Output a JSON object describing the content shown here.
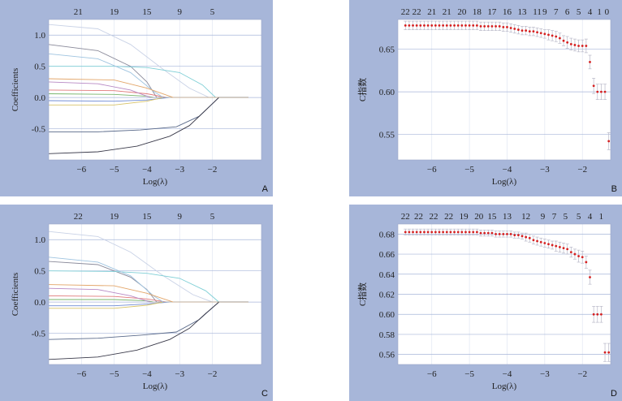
{
  "chart_data": [
    {
      "panel": "A",
      "type": "line",
      "xlabel": "Log(λ)",
      "ylabel": "Coefficients",
      "xlim": [
        -7,
        -0.5
      ],
      "ylim": [
        -1.0,
        1.25
      ],
      "x_ticks": [
        -6,
        -5,
        -4,
        -3,
        -2
      ],
      "y_ticks": [
        -0.5,
        0.0,
        0.5,
        1.0
      ],
      "y_tick_labels": [
        "-0.5",
        "0.0",
        "0.5",
        "1.0"
      ],
      "top_labels": [
        {
          "x": -6.1,
          "label": "21"
        },
        {
          "x": -5.0,
          "label": "19"
        },
        {
          "x": -4.0,
          "label": "15"
        },
        {
          "x": -3.0,
          "label": "9"
        },
        {
          "x": -2.0,
          "label": "5"
        }
      ],
      "series": [
        {
          "color": "#c9d2e6",
          "values": [
            [
              -7,
              1.17
            ],
            [
              -5.5,
              1.1
            ],
            [
              -4.5,
              0.85
            ],
            [
              -3.5,
              0.45
            ],
            [
              -2.7,
              0.15
            ],
            [
              -2.1,
              0.0
            ]
          ]
        },
        {
          "color": "#8a8a9a",
          "values": [
            [
              -7,
              0.85
            ],
            [
              -5.5,
              0.75
            ],
            [
              -4.5,
              0.5
            ],
            [
              -4.0,
              0.25
            ],
            [
              -3.7,
              0.0
            ]
          ]
        },
        {
          "color": "#7fcfd6",
          "values": [
            [
              -7,
              0.5
            ],
            [
              -5,
              0.5
            ],
            [
              -4,
              0.48
            ],
            [
              -3,
              0.4
            ],
            [
              -2.3,
              0.2
            ],
            [
              -1.9,
              0.0
            ]
          ]
        },
        {
          "color": "#e07a7a",
          "values": [
            [
              -7,
              0.12
            ],
            [
              -5,
              0.11
            ],
            [
              -4,
              0.06
            ],
            [
              -3.4,
              0.0
            ]
          ]
        },
        {
          "color": "#78b56b",
          "values": [
            [
              -7,
              0.06
            ],
            [
              -5,
              0.05
            ],
            [
              -4,
              0.02
            ],
            [
              -3.8,
              0.0
            ]
          ]
        },
        {
          "color": "#6f8bd4",
          "values": [
            [
              -7,
              -0.05
            ],
            [
              -5,
              -0.06
            ],
            [
              -4,
              -0.04
            ],
            [
              -3.3,
              0.0
            ]
          ]
        },
        {
          "color": "#b889c4",
          "values": [
            [
              -7,
              0.25
            ],
            [
              -5.5,
              0.22
            ],
            [
              -4.5,
              0.12
            ],
            [
              -3.9,
              0.0
            ]
          ]
        },
        {
          "color": "#d8c46a",
          "values": [
            [
              -7,
              -0.12
            ],
            [
              -5,
              -0.12
            ],
            [
              -4,
              -0.06
            ],
            [
              -3.5,
              0.0
            ]
          ]
        },
        {
          "color": "#5a6a8a",
          "values": [
            [
              -7,
              -0.55
            ],
            [
              -5.5,
              -0.55
            ],
            [
              -4.2,
              -0.52
            ],
            [
              -3.1,
              -0.47
            ],
            [
              -2.4,
              -0.3
            ],
            [
              -1.8,
              0.0
            ]
          ]
        },
        {
          "color": "#3a3a4a",
          "values": [
            [
              -7,
              -0.9
            ],
            [
              -5.5,
              -0.87
            ],
            [
              -4.3,
              -0.78
            ],
            [
              -3.3,
              -0.62
            ],
            [
              -2.7,
              -0.45
            ],
            [
              -2.2,
              -0.2
            ],
            [
              -1.8,
              0.0
            ]
          ]
        },
        {
          "color": "#9fc4e0",
          "values": [
            [
              -7,
              0.7
            ],
            [
              -5.5,
              0.62
            ],
            [
              -4.5,
              0.4
            ],
            [
              -3.8,
              0.1
            ],
            [
              -3.5,
              0.0
            ]
          ]
        },
        {
          "color": "#e3a66a",
          "values": [
            [
              -7,
              0.3
            ],
            [
              -5,
              0.28
            ],
            [
              -4,
              0.15
            ],
            [
              -3.2,
              0.0
            ]
          ]
        }
      ]
    },
    {
      "panel": "B",
      "type": "scatter",
      "xlabel": "Log(λ)",
      "ylabel": "C指数",
      "xlim": [
        -6.9,
        -1.25
      ],
      "ylim": [
        0.52,
        0.685
      ],
      "x_ticks": [
        -6,
        -5,
        -4,
        -3,
        -2
      ],
      "y_ticks": [
        0.55,
        0.6,
        0.65
      ],
      "y_tick_labels": [
        "0.55",
        "0.60",
        "0.65"
      ],
      "top_labels": [
        {
          "x": -6.7,
          "label": "22"
        },
        {
          "x": -6.4,
          "label": "22"
        },
        {
          "x": -6.0,
          "label": "21"
        },
        {
          "x": -5.6,
          "label": "21"
        },
        {
          "x": -5.2,
          "label": "20"
        },
        {
          "x": -4.8,
          "label": "18"
        },
        {
          "x": -4.4,
          "label": "17"
        },
        {
          "x": -4.0,
          "label": "16"
        },
        {
          "x": -3.6,
          "label": "13"
        },
        {
          "x": -3.2,
          "label": "11"
        },
        {
          "x": -3.0,
          "label": "9"
        },
        {
          "x": -2.7,
          "label": "7"
        },
        {
          "x": -2.4,
          "label": "6"
        },
        {
          "x": -2.1,
          "label": "5"
        },
        {
          "x": -1.8,
          "label": "4"
        },
        {
          "x": -1.55,
          "label": "1"
        },
        {
          "x": -1.35,
          "label": "0"
        }
      ],
      "x": [
        -6.7,
        -6.6,
        -6.5,
        -6.4,
        -6.3,
        -6.2,
        -6.1,
        -6.0,
        -5.9,
        -5.8,
        -5.7,
        -5.6,
        -5.5,
        -5.4,
        -5.3,
        -5.2,
        -5.1,
        -5.0,
        -4.9,
        -4.8,
        -4.7,
        -4.6,
        -4.5,
        -4.4,
        -4.3,
        -4.2,
        -4.1,
        -4.0,
        -3.9,
        -3.8,
        -3.7,
        -3.6,
        -3.5,
        -3.4,
        -3.3,
        -3.2,
        -3.1,
        -3.0,
        -2.9,
        -2.8,
        -2.7,
        -2.6,
        -2.5,
        -2.4,
        -2.3,
        -2.2,
        -2.1,
        -2.0,
        -1.9,
        -1.8,
        -1.7,
        -1.6,
        -1.5,
        -1.4,
        -1.3
      ],
      "y": [
        0.678,
        0.678,
        0.678,
        0.678,
        0.678,
        0.678,
        0.678,
        0.678,
        0.678,
        0.678,
        0.678,
        0.678,
        0.678,
        0.678,
        0.678,
        0.678,
        0.678,
        0.678,
        0.678,
        0.678,
        0.677,
        0.677,
        0.677,
        0.677,
        0.677,
        0.677,
        0.676,
        0.676,
        0.675,
        0.674,
        0.673,
        0.672,
        0.672,
        0.671,
        0.671,
        0.67,
        0.669,
        0.668,
        0.667,
        0.666,
        0.665,
        0.663,
        0.66,
        0.658,
        0.656,
        0.655,
        0.654,
        0.654,
        0.654,
        0.635,
        0.607,
        0.6,
        0.6,
        0.6,
        0.542
      ],
      "err": [
        0.005,
        0.005,
        0.005,
        0.005,
        0.005,
        0.005,
        0.005,
        0.005,
        0.005,
        0.005,
        0.005,
        0.005,
        0.005,
        0.005,
        0.005,
        0.005,
        0.005,
        0.005,
        0.005,
        0.005,
        0.005,
        0.005,
        0.005,
        0.005,
        0.005,
        0.005,
        0.005,
        0.005,
        0.005,
        0.005,
        0.005,
        0.005,
        0.005,
        0.005,
        0.005,
        0.005,
        0.005,
        0.005,
        0.006,
        0.006,
        0.006,
        0.006,
        0.006,
        0.007,
        0.007,
        0.007,
        0.007,
        0.007,
        0.008,
        0.008,
        0.009,
        0.009,
        0.009,
        0.009,
        0.01
      ],
      "marker_color": "#d62020"
    },
    {
      "panel": "C",
      "type": "line",
      "xlabel": "Log(λ)",
      "ylabel": "Coefficients",
      "xlim": [
        -7,
        -0.5
      ],
      "ylim": [
        -1.0,
        1.25
      ],
      "x_ticks": [
        -6,
        -5,
        -4,
        -3,
        -2
      ],
      "y_ticks": [
        -0.5,
        0.0,
        0.5,
        1.0
      ],
      "y_tick_labels": [
        "-0.5",
        "0.0",
        "0.5",
        "1.0"
      ],
      "top_labels": [
        {
          "x": -6.1,
          "label": "22"
        },
        {
          "x": -5.0,
          "label": "19"
        },
        {
          "x": -4.0,
          "label": "15"
        },
        {
          "x": -3.0,
          "label": "9"
        },
        {
          "x": -2.0,
          "label": "5"
        }
      ],
      "series": [
        {
          "color": "#c9d2e6",
          "values": [
            [
              -7,
              1.13
            ],
            [
              -5.5,
              1.05
            ],
            [
              -4.5,
              0.8
            ],
            [
              -3.5,
              0.42
            ],
            [
              -2.6,
              0.12
            ],
            [
              -2.0,
              0.0
            ]
          ]
        },
        {
          "color": "#8a8a9a",
          "values": [
            [
              -7,
              0.65
            ],
            [
              -5.5,
              0.6
            ],
            [
              -4.5,
              0.4
            ],
            [
              -4.0,
              0.2
            ],
            [
              -3.7,
              0.0
            ]
          ]
        },
        {
          "color": "#7fcfd6",
          "values": [
            [
              -7,
              0.5
            ],
            [
              -5,
              0.49
            ],
            [
              -4,
              0.46
            ],
            [
              -3,
              0.38
            ],
            [
              -2.2,
              0.18
            ],
            [
              -1.8,
              0.0
            ]
          ]
        },
        {
          "color": "#e07a7a",
          "values": [
            [
              -7,
              0.1
            ],
            [
              -5,
              0.09
            ],
            [
              -4,
              0.05
            ],
            [
              -3.4,
              0.0
            ]
          ]
        },
        {
          "color": "#78b56b",
          "values": [
            [
              -7,
              0.04
            ],
            [
              -5,
              0.04
            ],
            [
              -4,
              0.02
            ],
            [
              -3.8,
              0.0
            ]
          ]
        },
        {
          "color": "#6f8bd4",
          "values": [
            [
              -7,
              -0.06
            ],
            [
              -5,
              -0.06
            ],
            [
              -4,
              -0.03
            ],
            [
              -3.3,
              0.0
            ]
          ]
        },
        {
          "color": "#b889c4",
          "values": [
            [
              -7,
              0.22
            ],
            [
              -5.5,
              0.2
            ],
            [
              -4.5,
              0.1
            ],
            [
              -3.9,
              0.0
            ]
          ]
        },
        {
          "color": "#d8c46a",
          "values": [
            [
              -7,
              -0.1
            ],
            [
              -5,
              -0.1
            ],
            [
              -4,
              -0.05
            ],
            [
              -3.5,
              0.0
            ]
          ]
        },
        {
          "color": "#5a6a8a",
          "values": [
            [
              -7,
              -0.6
            ],
            [
              -5.5,
              -0.58
            ],
            [
              -4.2,
              -0.53
            ],
            [
              -3.1,
              -0.48
            ],
            [
              -2.4,
              -0.28
            ],
            [
              -1.8,
              0.0
            ]
          ]
        },
        {
          "color": "#3a3a4a",
          "values": [
            [
              -7,
              -0.92
            ],
            [
              -5.5,
              -0.88
            ],
            [
              -4.3,
              -0.77
            ],
            [
              -3.3,
              -0.6
            ],
            [
              -2.7,
              -0.42
            ],
            [
              -2.2,
              -0.18
            ],
            [
              -1.8,
              0.0
            ]
          ]
        },
        {
          "color": "#9fc4e0",
          "values": [
            [
              -7,
              0.72
            ],
            [
              -5.5,
              0.64
            ],
            [
              -4.5,
              0.42
            ],
            [
              -3.8,
              0.1
            ],
            [
              -3.5,
              0.0
            ]
          ]
        },
        {
          "color": "#e3a66a",
          "values": [
            [
              -7,
              0.28
            ],
            [
              -5,
              0.26
            ],
            [
              -4,
              0.14
            ],
            [
              -3.2,
              0.0
            ]
          ]
        }
      ]
    },
    {
      "panel": "D",
      "type": "scatter",
      "xlabel": "Log(λ)",
      "ylabel": "C指数",
      "xlim": [
        -6.9,
        -1.25
      ],
      "ylim": [
        0.55,
        0.69
      ],
      "x_ticks": [
        -6,
        -5,
        -4,
        -3,
        -2
      ],
      "y_ticks": [
        0.56,
        0.58,
        0.6,
        0.62,
        0.64,
        0.66,
        0.68
      ],
      "y_tick_labels": [
        "0.56",
        "0.58",
        "0.60",
        "0.62",
        "0.64",
        "0.66",
        "0.68"
      ],
      "top_labels": [
        {
          "x": -6.7,
          "label": "22"
        },
        {
          "x": -6.35,
          "label": "22"
        },
        {
          "x": -5.95,
          "label": "22"
        },
        {
          "x": -5.55,
          "label": "22"
        },
        {
          "x": -5.15,
          "label": "19"
        },
        {
          "x": -4.75,
          "label": "20"
        },
        {
          "x": -4.4,
          "label": "15"
        },
        {
          "x": -4.0,
          "label": "13"
        },
        {
          "x": -3.5,
          "label": "12"
        },
        {
          "x": -3.05,
          "label": "9"
        },
        {
          "x": -2.75,
          "label": "7"
        },
        {
          "x": -2.45,
          "label": "5"
        },
        {
          "x": -2.1,
          "label": "5"
        },
        {
          "x": -1.8,
          "label": "4"
        },
        {
          "x": -1.5,
          "label": "1"
        }
      ],
      "x": [
        -6.7,
        -6.6,
        -6.5,
        -6.4,
        -6.3,
        -6.2,
        -6.1,
        -6.0,
        -5.9,
        -5.8,
        -5.7,
        -5.6,
        -5.5,
        -5.4,
        -5.3,
        -5.2,
        -5.1,
        -5.0,
        -4.9,
        -4.8,
        -4.7,
        -4.6,
        -4.5,
        -4.4,
        -4.3,
        -4.2,
        -4.1,
        -4.0,
        -3.9,
        -3.8,
        -3.7,
        -3.6,
        -3.5,
        -3.4,
        -3.3,
        -3.2,
        -3.1,
        -3.0,
        -2.9,
        -2.8,
        -2.7,
        -2.6,
        -2.5,
        -2.4,
        -2.3,
        -2.2,
        -2.1,
        -2.0,
        -1.9,
        -1.8,
        -1.7,
        -1.6,
        -1.5,
        -1.4,
        -1.3
      ],
      "y": [
        0.682,
        0.682,
        0.682,
        0.682,
        0.682,
        0.682,
        0.682,
        0.682,
        0.682,
        0.682,
        0.682,
        0.682,
        0.682,
        0.682,
        0.682,
        0.682,
        0.682,
        0.682,
        0.682,
        0.682,
        0.681,
        0.681,
        0.681,
        0.681,
        0.68,
        0.68,
        0.68,
        0.68,
        0.68,
        0.679,
        0.679,
        0.678,
        0.677,
        0.676,
        0.674,
        0.673,
        0.672,
        0.671,
        0.67,
        0.669,
        0.668,
        0.667,
        0.666,
        0.665,
        0.662,
        0.66,
        0.658,
        0.657,
        0.652,
        0.637,
        0.6,
        0.6,
        0.6,
        0.562,
        0.562
      ],
      "err": [
        0.003,
        0.003,
        0.003,
        0.003,
        0.003,
        0.003,
        0.003,
        0.003,
        0.003,
        0.003,
        0.003,
        0.003,
        0.003,
        0.003,
        0.003,
        0.003,
        0.003,
        0.003,
        0.003,
        0.003,
        0.003,
        0.003,
        0.003,
        0.003,
        0.003,
        0.003,
        0.003,
        0.003,
        0.003,
        0.003,
        0.003,
        0.003,
        0.004,
        0.004,
        0.004,
        0.004,
        0.004,
        0.004,
        0.004,
        0.004,
        0.005,
        0.005,
        0.005,
        0.005,
        0.005,
        0.005,
        0.006,
        0.006,
        0.006,
        0.007,
        0.008,
        0.008,
        0.008,
        0.009,
        0.009
      ],
      "marker_color": "#d62020"
    }
  ]
}
